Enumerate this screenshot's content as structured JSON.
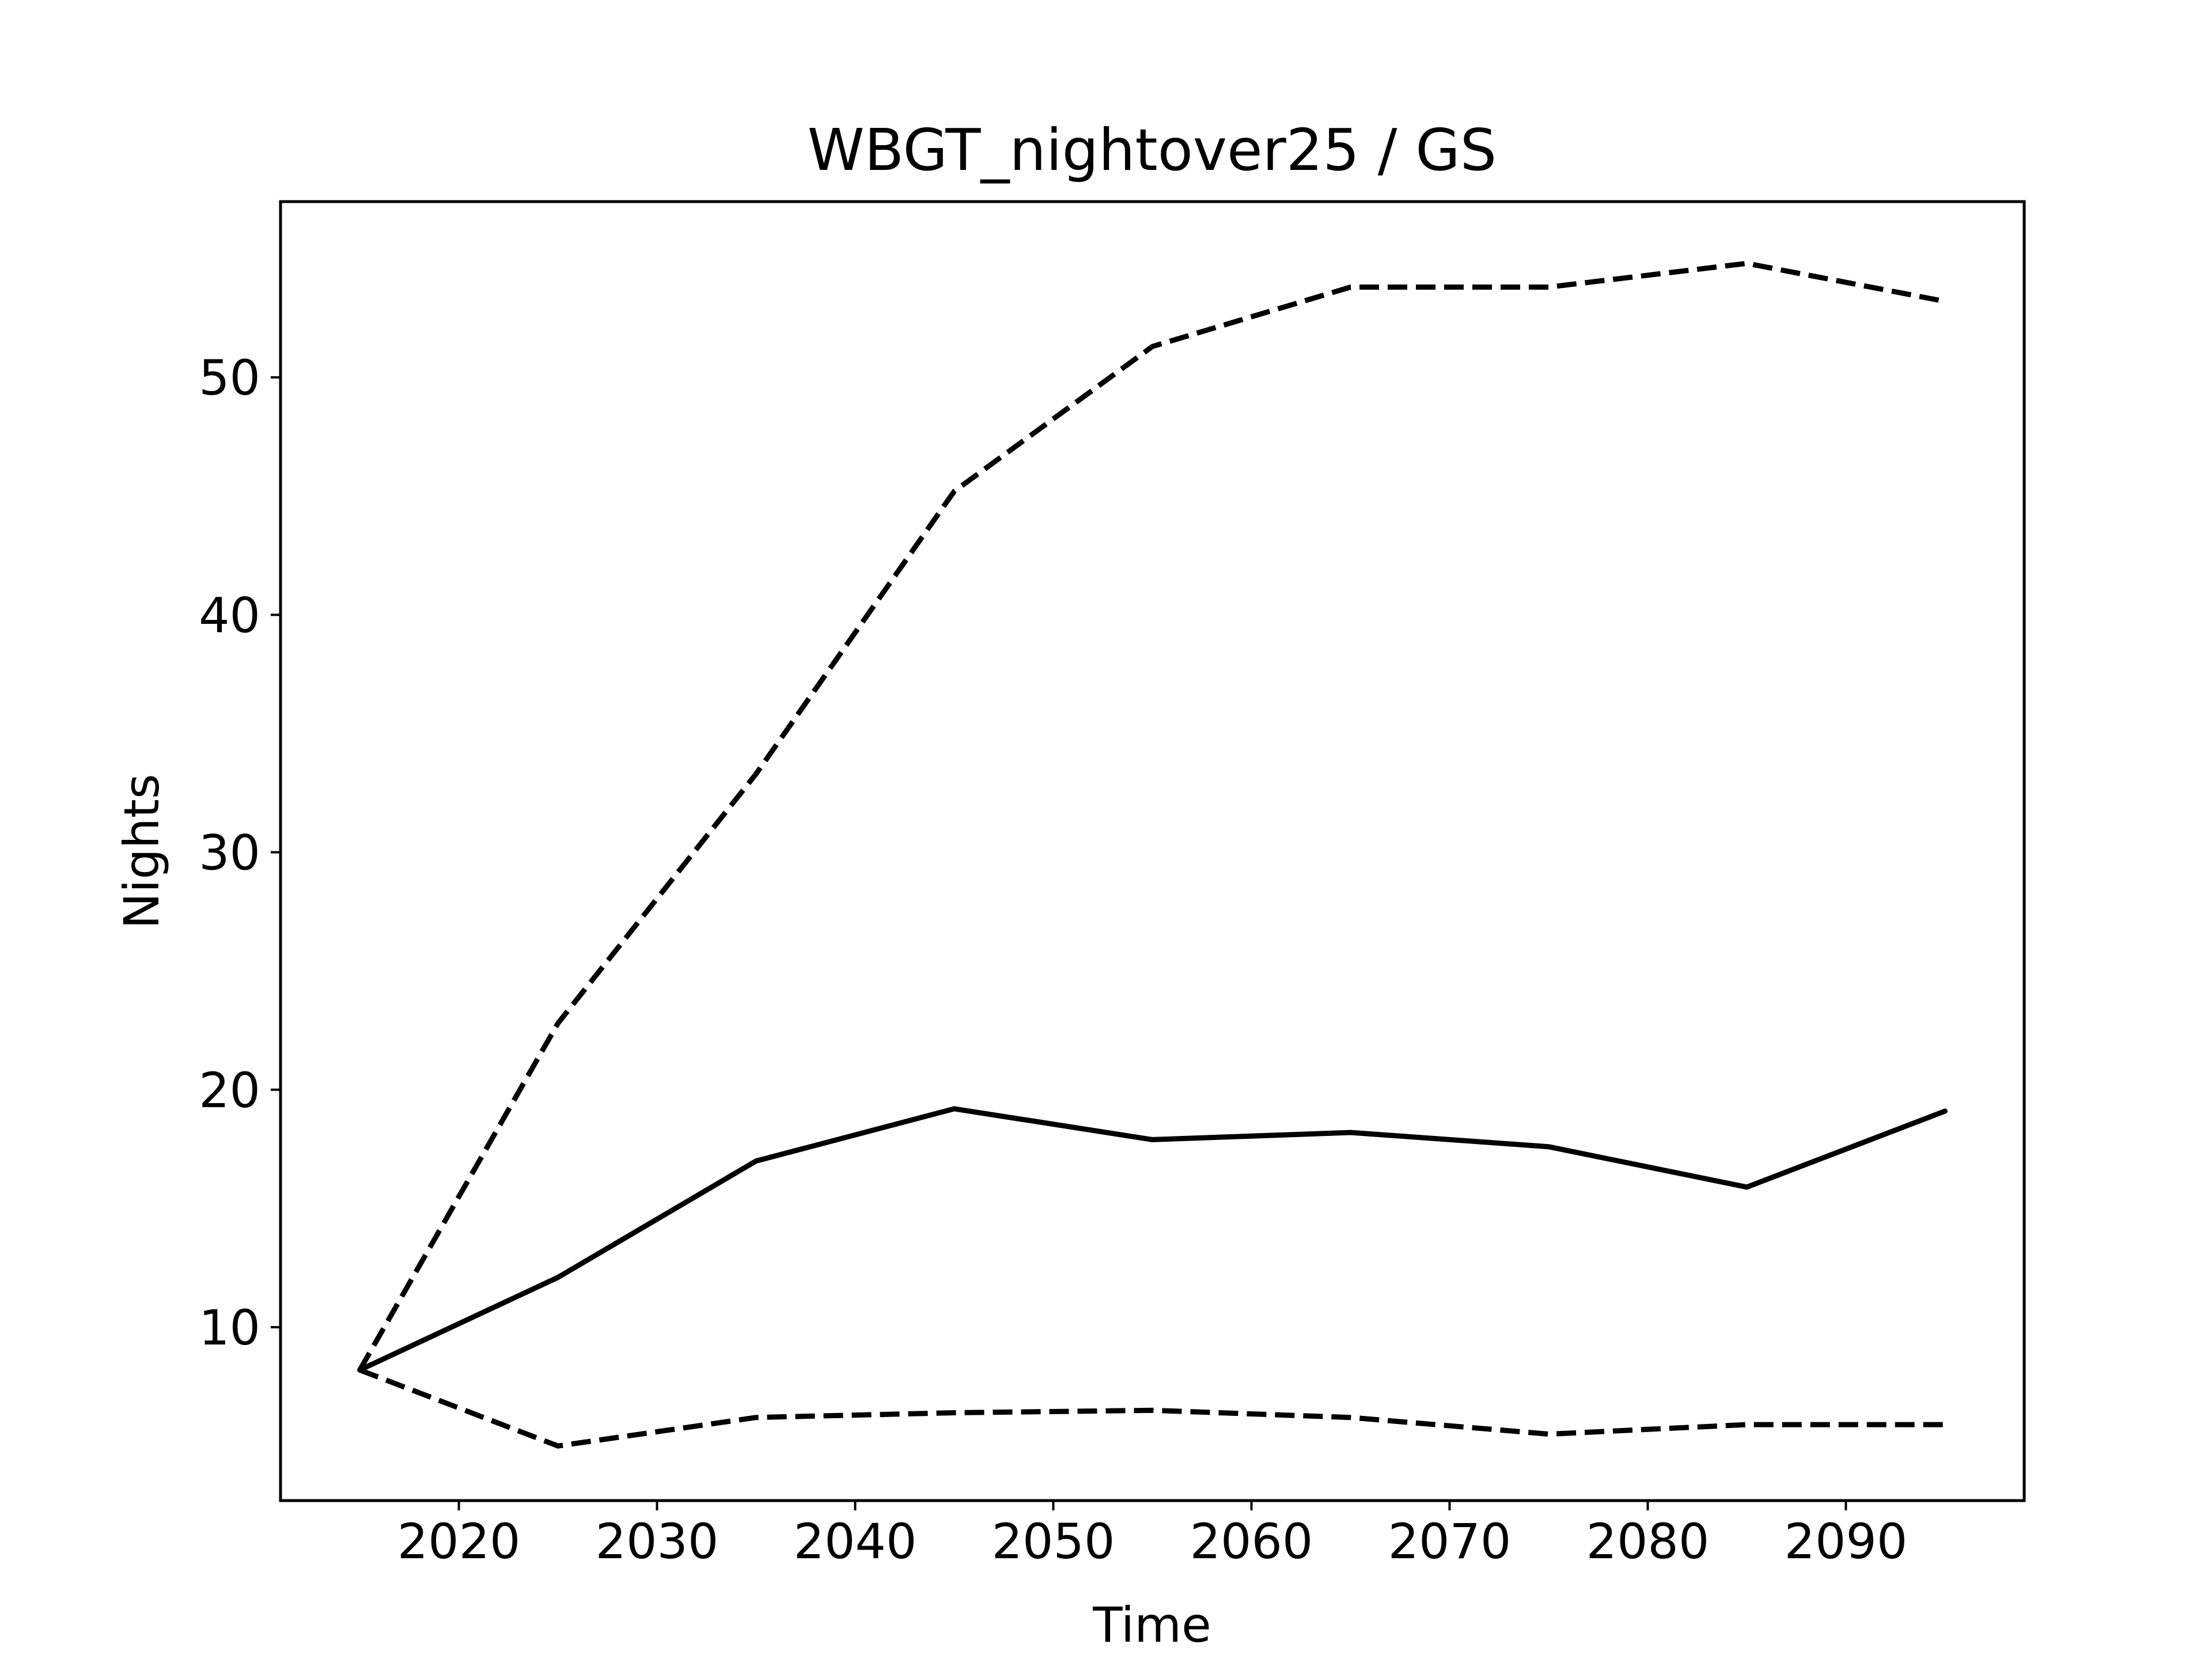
{
  "chart_data": {
    "type": "line",
    "title": "WBGT_nightover25 / GS",
    "xlabel": "Time",
    "ylabel": "Nights",
    "x": [
      2015,
      2025,
      2035,
      2045,
      2055,
      2065,
      2075,
      2085,
      2095
    ],
    "series": [
      {
        "line_style": "solid",
        "color": "#000000",
        "values": [
          8.2,
          12.1,
          17.0,
          19.2,
          17.9,
          18.2,
          17.6,
          15.9,
          19.1
        ]
      },
      {
        "line_style": "dashed",
        "color": "#000000",
        "values": [
          8.2,
          22.8,
          33.3,
          45.2,
          51.3,
          53.8,
          53.8,
          54.8,
          53.2
        ]
      },
      {
        "line_style": "dashed",
        "color": "#000000",
        "values": [
          8.2,
          5.0,
          6.2,
          6.4,
          6.5,
          6.2,
          5.5,
          5.9,
          5.9
        ]
      }
    ],
    "xlim": [
      2011,
      2099
    ],
    "ylim": [
      2.7,
      57.4
    ],
    "xticks": [
      2020,
      2030,
      2040,
      2050,
      2060,
      2070,
      2080,
      2090
    ],
    "yticks": [
      10,
      20,
      30,
      40,
      50
    ],
    "grid": false,
    "legend": "none"
  }
}
